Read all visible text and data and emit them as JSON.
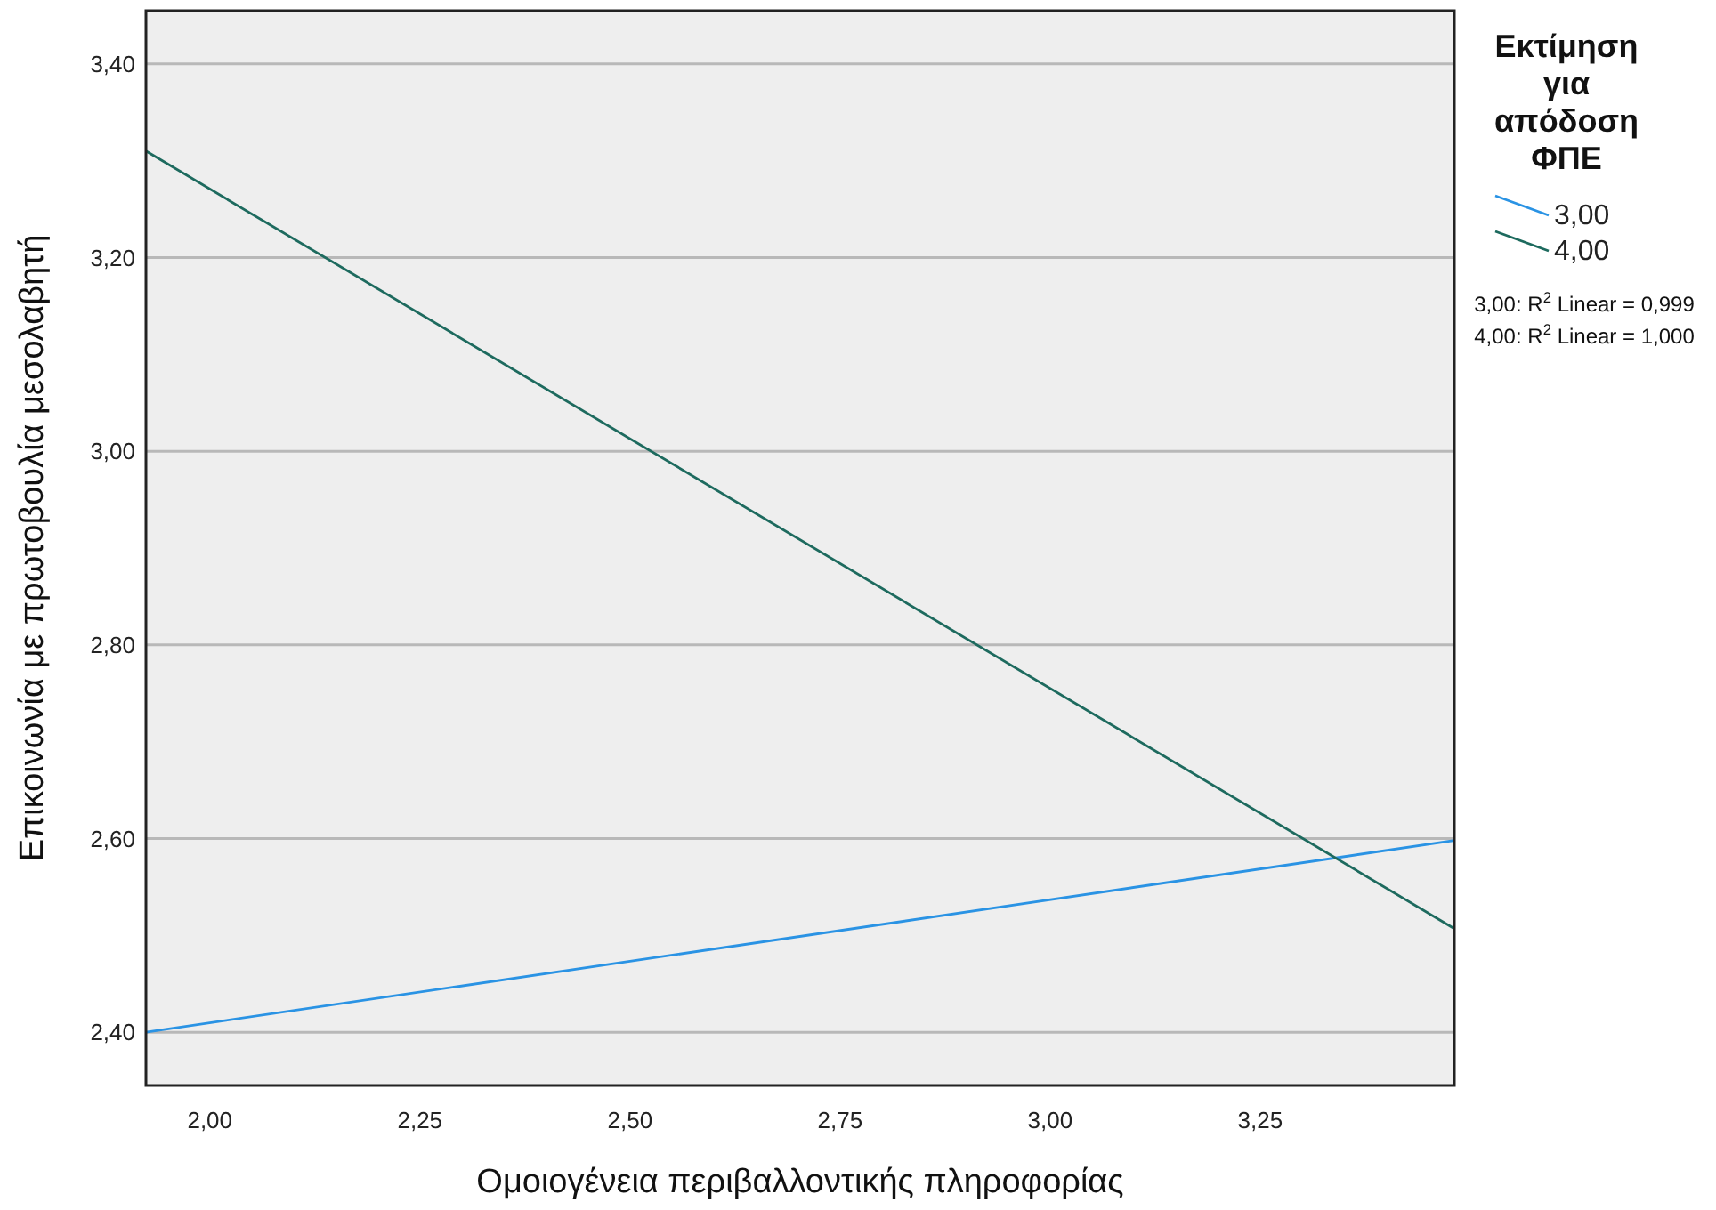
{
  "chart_data": {
    "type": "line",
    "xlabel": "Ομοιογένεια περιβαλλοντικής πληροφορίας",
    "ylabel": "Επικοινωνία με πρωτοβουλία μεσολαβητή",
    "legend_title": "Εκτίμηση για απόδοση ΦΠΕ",
    "legend": "top right",
    "grid": "y",
    "marker": "none",
    "line_style": "solid",
    "x": [
      1.924,
      3.481
    ],
    "xlim": [
      1.924,
      3.481
    ],
    "ylim": [
      2.345,
      3.455
    ],
    "xticks": [
      {
        "value": 2,
        "label": "2,00"
      },
      {
        "value": 2.25,
        "label": "2,25"
      },
      {
        "value": 2.5,
        "label": "2,50"
      },
      {
        "value": 2.75,
        "label": "2,75"
      },
      {
        "value": 3,
        "label": "3,00"
      },
      {
        "value": 3.25,
        "label": "3,25"
      }
    ],
    "yticks": [
      {
        "value": 2.4,
        "label": "2,40"
      },
      {
        "value": 2.6,
        "label": "2,60"
      },
      {
        "value": 2.8,
        "label": "2,80"
      },
      {
        "value": 3,
        "label": "3,00"
      },
      {
        "value": 3.2,
        "label": "3,20"
      },
      {
        "value": 3.4,
        "label": "3,40"
      }
    ],
    "series": [
      {
        "name": "3,00",
        "color": "#2a93e4",
        "values": [
          2.4,
          2.598
        ]
      },
      {
        "name": "4,00",
        "color": "#1d6a5e",
        "values": [
          3.31,
          2.507
        ]
      }
    ],
    "annotations": [
      "3,00: R$^{2}$ Linear = 0,999",
      "4,00: R$^{2}$ Linear = 1,000"
    ]
  }
}
